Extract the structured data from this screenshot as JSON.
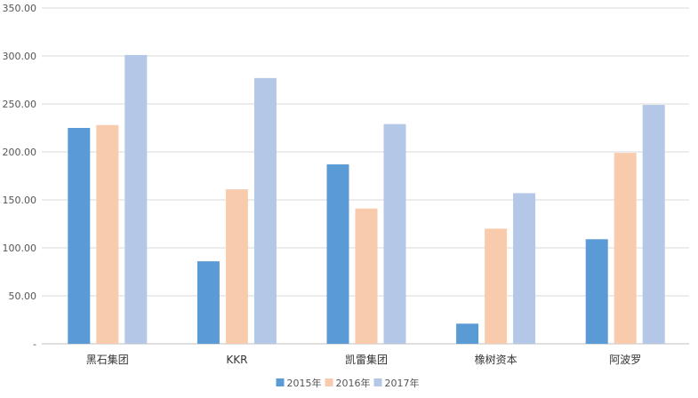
{
  "chart_data": {
    "type": "bar",
    "categories": [
      "黑石集团",
      "KKR",
      "凯雷集团",
      "橡树资本",
      "阿波罗"
    ],
    "series": [
      {
        "name": "2015年",
        "color": "#5B9BD5",
        "values": [
          225,
          86,
          187,
          21,
          109
        ]
      },
      {
        "name": "2016年",
        "color": "#F8CBAD",
        "values": [
          228,
          161,
          141,
          120,
          199
        ]
      },
      {
        "name": "2017年",
        "color": "#B4C7E7",
        "values": [
          301,
          277,
          229,
          157,
          249
        ]
      }
    ],
    "yticks": [
      "-",
      "50.00",
      "100.00",
      "150.00",
      "200.00",
      "250.00",
      "300.00",
      "350.00"
    ],
    "ylim": [
      0,
      350
    ],
    "grid": true,
    "legend": "bottom-center"
  }
}
